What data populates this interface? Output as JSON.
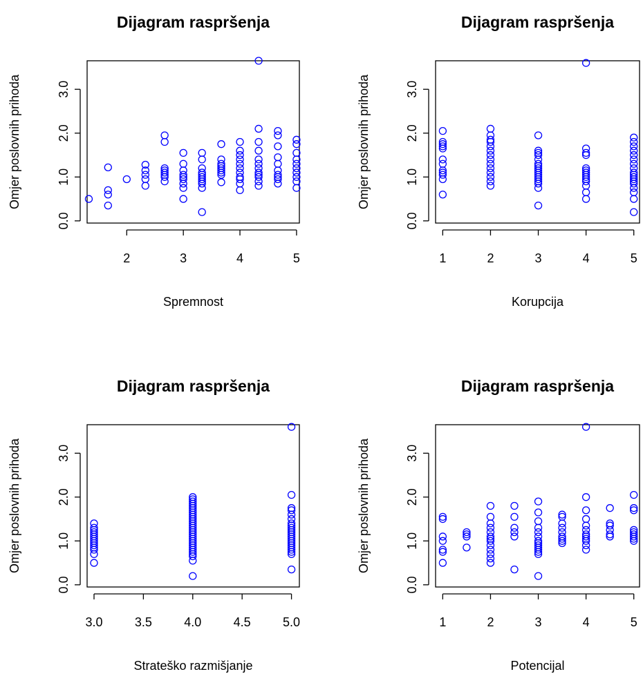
{
  "chart_data": [
    {
      "type": "scatter",
      "title": "Dijagram raspršenja",
      "xlabel": "Spremnost",
      "ylabel": "Omjer poslovnih prihoda",
      "xlim": [
        1.3,
        5.05
      ],
      "ylim": [
        -0.05,
        3.65
      ],
      "xticks": [
        2,
        3,
        4,
        5
      ],
      "xtick_labels": [
        "2",
        "3",
        "4",
        "5"
      ],
      "yticks": [
        0,
        1,
        2,
        3
      ],
      "ytick_labels": [
        "0.0",
        "1.0",
        "2.0",
        "3.0"
      ],
      "color": "#0000ff",
      "x": [
        1.33,
        1.67,
        1.67,
        1.67,
        1.67,
        2.0,
        2.33,
        2.33,
        2.33,
        2.33,
        2.33,
        2.67,
        2.67,
        2.67,
        2.67,
        2.67,
        2.67,
        2.67,
        2.67,
        3.0,
        3.0,
        3.0,
        3.0,
        3.0,
        3.0,
        3.0,
        3.0,
        3.0,
        3.33,
        3.33,
        3.33,
        3.33,
        3.33,
        3.33,
        3.33,
        3.33,
        3.33,
        3.33,
        3.33,
        3.67,
        3.67,
        3.67,
        3.67,
        3.67,
        3.67,
        3.67,
        3.67,
        3.67,
        4.0,
        4.0,
        4.0,
        4.0,
        4.0,
        4.0,
        4.0,
        4.0,
        4.0,
        4.0,
        4.0,
        4.33,
        4.33,
        4.33,
        4.33,
        4.33,
        4.33,
        4.33,
        4.33,
        4.33,
        4.33,
        4.33,
        4.33,
        4.67,
        4.67,
        4.67,
        4.67,
        4.67,
        4.67,
        4.67,
        4.67,
        4.67,
        4.67,
        5.0,
        5.0,
        5.0,
        5.0,
        5.0,
        5.0,
        5.0,
        5.0,
        5.0,
        5.0
      ],
      "y": [
        0.5,
        0.35,
        0.6,
        0.7,
        1.22,
        0.95,
        0.8,
        0.95,
        1.05,
        1.15,
        1.28,
        0.9,
        1.0,
        1.05,
        1.1,
        1.15,
        1.2,
        1.8,
        1.95,
        0.5,
        0.75,
        0.85,
        0.95,
        1.0,
        1.05,
        1.15,
        1.3,
        1.55,
        0.2,
        0.75,
        0.85,
        0.9,
        0.95,
        1.0,
        1.05,
        1.1,
        1.2,
        1.4,
        1.55,
        0.88,
        1.05,
        1.1,
        1.15,
        1.2,
        1.25,
        1.3,
        1.4,
        1.75,
        0.7,
        0.85,
        0.95,
        1.0,
        1.1,
        1.2,
        1.3,
        1.4,
        1.5,
        1.6,
        1.8,
        0.8,
        0.9,
        1.0,
        1.05,
        1.1,
        1.2,
        1.3,
        1.4,
        1.6,
        1.8,
        2.1,
        3.65,
        0.85,
        0.95,
        1.0,
        1.05,
        1.15,
        1.3,
        1.45,
        1.7,
        1.95,
        2.05,
        0.75,
        0.9,
        1.0,
        1.1,
        1.2,
        1.3,
        1.4,
        1.55,
        1.75,
        1.85
      ]
    },
    {
      "type": "scatter",
      "title": "Dijagram raspršenja",
      "xlabel": "Korupcija",
      "ylabel": "Omjer poslovnih prihoda",
      "xlim": [
        0.85,
        5.12
      ],
      "ylim": [
        -0.05,
        3.65
      ],
      "xticks": [
        1,
        2,
        3,
        4,
        5
      ],
      "xtick_labels": [
        "1",
        "2",
        "3",
        "4",
        "5"
      ],
      "yticks": [
        0,
        1,
        2,
        3
      ],
      "ytick_labels": [
        "0.0",
        "1.0",
        "2.0",
        "3.0"
      ],
      "color": "#0000ff",
      "x": [
        1,
        1,
        1,
        1,
        1,
        1,
        1,
        1,
        1,
        1,
        1,
        1,
        2,
        2,
        2,
        2,
        2,
        2,
        2,
        2,
        2,
        2,
        2,
        2,
        2,
        2,
        3,
        3,
        3,
        3,
        3,
        3,
        3,
        3,
        3,
        3,
        3,
        3,
        3,
        3,
        3,
        3,
        3,
        4,
        4,
        4,
        4,
        4,
        4,
        4,
        4,
        4,
        4,
        4,
        4,
        4,
        4,
        5,
        5,
        5,
        5,
        5,
        5,
        5,
        5,
        5,
        5,
        5,
        5,
        5,
        5,
        5,
        5,
        5,
        5
      ],
      "y": [
        0.6,
        0.95,
        1.05,
        1.1,
        1.15,
        1.3,
        1.4,
        1.65,
        1.7,
        1.75,
        1.8,
        2.05,
        0.8,
        0.9,
        1.0,
        1.1,
        1.2,
        1.3,
        1.4,
        1.5,
        1.6,
        1.7,
        1.8,
        1.85,
        1.95,
        2.1,
        0.35,
        0.75,
        0.85,
        0.9,
        0.95,
        1.0,
        1.05,
        1.1,
        1.15,
        1.2,
        1.25,
        1.3,
        1.4,
        1.5,
        1.55,
        1.6,
        1.95,
        0.5,
        0.65,
        0.8,
        0.9,
        0.95,
        1.0,
        1.05,
        1.1,
        1.15,
        1.2,
        1.5,
        1.55,
        1.65,
        3.6,
        0.2,
        0.5,
        0.65,
        0.75,
        0.85,
        0.9,
        0.95,
        1.0,
        1.05,
        1.1,
        1.2,
        1.3,
        1.4,
        1.5,
        1.6,
        1.7,
        1.8,
        1.9
      ]
    },
    {
      "type": "scatter",
      "title": "Dijagram raspršenja",
      "xlabel": "Strateško razmišjanje",
      "ylabel": "Omjer poslovnih prihoda",
      "xlim": [
        2.93,
        5.08
      ],
      "ylim": [
        -0.05,
        3.65
      ],
      "xticks": [
        3.0,
        3.5,
        4.0,
        4.5,
        5.0
      ],
      "xtick_labels": [
        "3.0",
        "3.5",
        "4.0",
        "4.5",
        "5.0"
      ],
      "yticks": [
        0,
        1,
        2,
        3
      ],
      "ytick_labels": [
        "0.0",
        "1.0",
        "2.0",
        "3.0"
      ],
      "color": "#0000ff",
      "x": [
        3,
        3,
        3,
        3,
        3,
        3,
        3,
        3,
        3,
        3,
        3,
        3,
        3,
        3,
        4,
        4,
        4,
        4,
        4,
        4,
        4,
        4,
        4,
        4,
        4,
        4,
        4,
        4,
        4,
        4,
        4,
        4,
        4,
        4,
        4,
        4,
        4,
        4,
        4,
        4,
        4,
        4,
        4,
        4,
        5,
        5,
        5,
        5,
        5,
        5,
        5,
        5,
        5,
        5,
        5,
        5,
        5,
        5,
        5,
        5,
        5,
        5,
        5,
        5,
        5,
        5
      ],
      "y": [
        0.5,
        0.7,
        0.8,
        0.85,
        0.9,
        0.95,
        1.0,
        1.05,
        1.1,
        1.15,
        1.2,
        1.25,
        1.3,
        1.4,
        0.2,
        0.55,
        0.65,
        0.7,
        0.75,
        0.8,
        0.85,
        0.9,
        0.95,
        1.0,
        1.05,
        1.1,
        1.15,
        1.2,
        1.25,
        1.3,
        1.35,
        1.4,
        1.45,
        1.5,
        1.55,
        1.6,
        1.65,
        1.7,
        1.75,
        1.8,
        1.85,
        1.9,
        1.95,
        2.0,
        0.35,
        0.7,
        0.75,
        0.8,
        0.85,
        0.9,
        0.95,
        1.0,
        1.05,
        1.1,
        1.15,
        1.2,
        1.25,
        1.3,
        1.35,
        1.4,
        1.5,
        1.6,
        1.7,
        1.75,
        2.05,
        3.6
      ]
    },
    {
      "type": "scatter",
      "title": "Dijagram raspršenja",
      "xlabel": "Potencijal",
      "ylabel": "Omjer poslovnih prihoda",
      "xlim": [
        0.85,
        5.12
      ],
      "ylim": [
        -0.05,
        3.65
      ],
      "xticks": [
        1,
        2,
        3,
        4,
        5
      ],
      "xtick_labels": [
        "1",
        "2",
        "3",
        "4",
        "5"
      ],
      "yticks": [
        0,
        1,
        2,
        3
      ],
      "ytick_labels": [
        "0.0",
        "1.0",
        "2.0",
        "3.0"
      ],
      "color": "#0000ff",
      "x": [
        1,
        1,
        1,
        1,
        1,
        1,
        1,
        1.5,
        1.5,
        1.5,
        1.5,
        2,
        2,
        2,
        2,
        2,
        2,
        2,
        2,
        2,
        2,
        2,
        2,
        2,
        2.5,
        2.5,
        2.5,
        2.5,
        2.5,
        2.5,
        3,
        3,
        3,
        3,
        3,
        3,
        3,
        3,
        3,
        3,
        3,
        3,
        3,
        3,
        3.5,
        3.5,
        3.5,
        3.5,
        3.5,
        3.5,
        3.5,
        3.5,
        3.5,
        4,
        4,
        4,
        4,
        4,
        4,
        4,
        4,
        4,
        4,
        4,
        4,
        4.5,
        4.5,
        4.5,
        4.5,
        4.5,
        4.5,
        5,
        5,
        5,
        5,
        5,
        5,
        5,
        5,
        5
      ],
      "y": [
        0.5,
        0.75,
        0.8,
        1.0,
        1.1,
        1.5,
        1.55,
        0.85,
        1.1,
        1.15,
        1.2,
        0.5,
        0.6,
        0.7,
        0.8,
        0.9,
        1.0,
        1.05,
        1.1,
        1.2,
        1.3,
        1.4,
        1.55,
        1.8,
        0.35,
        1.1,
        1.2,
        1.3,
        1.55,
        1.8,
        0.2,
        0.7,
        0.75,
        0.8,
        0.85,
        0.9,
        0.95,
        1.0,
        1.1,
        1.2,
        1.3,
        1.45,
        1.65,
        1.9,
        0.95,
        1.0,
        1.05,
        1.1,
        1.2,
        1.3,
        1.4,
        1.55,
        1.6,
        0.8,
        0.9,
        1.0,
        1.05,
        1.1,
        1.15,
        1.25,
        1.35,
        1.5,
        1.7,
        2.0,
        3.6,
        1.1,
        1.15,
        1.25,
        1.35,
        1.4,
        1.75,
        1.0,
        1.05,
        1.1,
        1.15,
        1.2,
        1.25,
        1.7,
        1.75,
        2.05
      ]
    }
  ]
}
